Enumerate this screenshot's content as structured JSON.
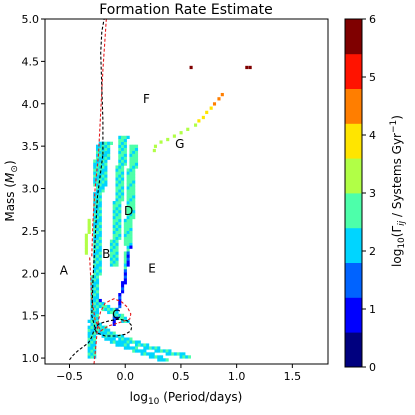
{
  "chart_data": {
    "type": "heatmap",
    "title": "Formation Rate Estimate",
    "xlabel": "log$_{10}$ (Period/days)",
    "ylabel": "Mass ($M_{\\odot}$)",
    "xlim": [
      -0.72,
      1.82
    ],
    "ylim": [
      0.93,
      5.0
    ],
    "xticks": [
      -0.5,
      0.0,
      0.5,
      1.0,
      1.5
    ],
    "xtick_labels": [
      "−0.5",
      "0.0",
      "0.5",
      "1.0",
      "1.5"
    ],
    "yticks": [
      1.0,
      1.5,
      2.0,
      2.5,
      3.0,
      3.5,
      4.0,
      4.5,
      5.0
    ],
    "ytick_labels": [
      "1.0",
      "1.5",
      "2.0",
      "2.5",
      "3.0",
      "3.5",
      "4.0",
      "4.5",
      "5.0"
    ],
    "colorbar": {
      "label": "log$_{10}$(Γ$_{ij}$ / Systems Gyr$^{-1}$)",
      "range": [
        0,
        6
      ],
      "ticks": [
        0,
        1,
        2,
        3,
        4,
        5,
        6
      ],
      "tick_labels": [
        "0",
        "1",
        "2",
        "3",
        "4",
        "5",
        "6"
      ],
      "colors": [
        "#00007f",
        "#0000ff",
        "#0063ff",
        "#00d5ff",
        "#4dffaa",
        "#b1ff46",
        "#ffe500",
        "#ff7e00",
        "#ff1300",
        "#7f0000"
      ]
    },
    "region_labels": [
      {
        "text": "A",
        "x": -0.55,
        "y": 2.03
      },
      {
        "text": "B",
        "x": -0.17,
        "y": 2.22
      },
      {
        "text": "C",
        "x": -0.08,
        "y": 1.51
      },
      {
        "text": "D",
        "x": 0.03,
        "y": 2.73
      },
      {
        "text": "E",
        "x": 0.24,
        "y": 2.05
      },
      {
        "text": "F",
        "x": 0.19,
        "y": 4.05
      },
      {
        "text": "G",
        "x": 0.49,
        "y": 3.52
      }
    ],
    "cell_size": {
      "dx": 0.025,
      "dy": 0.035
    },
    "cells": [
      [
        0.59,
        4.43,
        6.0
      ],
      [
        1.09,
        4.43,
        5.9
      ],
      [
        1.12,
        4.43,
        5.9
      ],
      [
        0.87,
        4.11,
        4.8
      ],
      [
        0.84,
        4.06,
        4.5
      ],
      [
        0.8,
        4.0,
        4.2
      ],
      [
        0.77,
        3.95,
        4.0
      ],
      [
        0.73,
        3.9,
        3.8
      ],
      [
        0.7,
        3.84,
        3.7
      ],
      [
        0.66,
        3.8,
        3.6
      ],
      [
        0.63,
        3.75,
        3.5
      ],
      [
        0.56,
        3.7,
        3.4
      ],
      [
        0.5,
        3.66,
        3.3
      ],
      [
        0.44,
        3.62,
        3.2
      ],
      [
        0.38,
        3.58,
        3.1
      ],
      [
        0.32,
        3.55,
        3.0
      ],
      [
        0.27,
        3.5,
        3.0
      ],
      [
        0.26,
        3.45,
        3.0
      ]
    ],
    "bands": [
      {
        "name": "main",
        "pts": [
          [
            -0.29,
            1.0,
            0.06
          ],
          [
            -0.29,
            1.35,
            0.06
          ],
          [
            -0.27,
            1.7,
            0.07
          ],
          [
            -0.26,
            2.1,
            0.08
          ],
          [
            -0.25,
            2.5,
            0.08
          ],
          [
            -0.24,
            2.9,
            0.08
          ],
          [
            -0.22,
            3.3,
            0.1
          ],
          [
            -0.18,
            3.55,
            0.11
          ]
        ],
        "v": 2.3
      },
      {
        "name": "inner",
        "pts": [
          [
            -0.1,
            2.1,
            0.04
          ],
          [
            -0.08,
            2.6,
            0.06
          ],
          [
            -0.05,
            3.05,
            0.07
          ],
          [
            -0.03,
            3.4,
            0.06
          ],
          [
            -0.01,
            3.62,
            0.05
          ]
        ],
        "v": 2.5
      },
      {
        "name": "right",
        "pts": [
          [
            0.0,
            2.05,
            0.03
          ],
          [
            0.02,
            2.4,
            0.04
          ],
          [
            0.05,
            2.85,
            0.04
          ],
          [
            0.06,
            3.15,
            0.04
          ],
          [
            0.07,
            3.5,
            0.04
          ]
        ],
        "v": 2.6
      },
      {
        "name": "lower1",
        "pts": [
          [
            -0.3,
            1.45,
            0.06
          ],
          [
            -0.15,
            1.3,
            0.05
          ],
          [
            0.0,
            1.22,
            0.05
          ],
          [
            0.15,
            1.15,
            0.05
          ],
          [
            0.35,
            1.08,
            0.05
          ],
          [
            0.55,
            1.02,
            0.04
          ]
        ],
        "v": 2.4
      },
      {
        "name": "lower2",
        "pts": [
          [
            -0.28,
            1.35,
            0.05
          ],
          [
            -0.1,
            1.2,
            0.04
          ],
          [
            0.05,
            1.12,
            0.04
          ],
          [
            0.2,
            1.05,
            0.04
          ],
          [
            0.35,
            0.98,
            0.04
          ]
        ],
        "v": 2.2
      },
      {
        "name": "lower3",
        "pts": [
          [
            -0.25,
            1.65,
            0.04
          ],
          [
            -0.12,
            1.55,
            0.04
          ],
          [
            0.0,
            1.45,
            0.04
          ]
        ],
        "v": 2.5
      },
      {
        "name": "blueline",
        "pts": [
          [
            -0.1,
            1.4,
            0.015
          ],
          [
            -0.02,
            1.85,
            0.015
          ],
          [
            0.04,
            2.3,
            0.015
          ]
        ],
        "v": 1.1
      },
      {
        "name": "blueline2",
        "pts": [
          [
            -0.27,
            1.85,
            0.015
          ],
          [
            -0.22,
            1.6,
            0.015
          ]
        ],
        "v": 1.3
      },
      {
        "name": "leftblip",
        "pts": [
          [
            -0.36,
            2.25,
            0.03
          ],
          [
            -0.34,
            2.45,
            0.03
          ],
          [
            -0.32,
            2.62,
            0.03
          ]
        ],
        "v": 3.3
      }
    ],
    "boundary_lines": [
      {
        "color": "#e41a1c",
        "style": "dashed",
        "x": [
          -0.28,
          -0.27,
          -0.26,
          -0.25,
          -0.24,
          -0.22,
          -0.18,
          -0.1,
          -0.03,
          0.02,
          0.05,
          0.04,
          -0.05,
          -0.15,
          -0.22,
          -0.27,
          -0.3,
          -0.32
        ],
        "y": [
          0.93,
          1.05,
          1.2,
          1.35,
          1.45,
          1.55,
          1.65,
          1.7,
          1.66,
          1.6,
          1.52,
          1.46,
          1.42,
          1.38,
          1.32,
          1.45,
          1.7,
          2.2
        ]
      },
      {
        "color": "#e41a1c",
        "style": "dashed",
        "x": [
          -0.3,
          -0.29,
          -0.27,
          -0.24,
          -0.22,
          -0.2,
          -0.18,
          -0.17
        ],
        "y": [
          2.2,
          2.6,
          3.0,
          3.4,
          3.9,
          4.4,
          4.8,
          5.0
        ]
      },
      {
        "color": "#000000",
        "style": "dashed",
        "x": [
          -0.5,
          -0.47,
          -0.43,
          -0.38,
          -0.33,
          -0.3,
          -0.28,
          -0.24,
          -0.2,
          -0.14,
          -0.06,
          0.02,
          0.06,
          0.05,
          0.0,
          -0.08,
          -0.18,
          -0.26,
          -0.3,
          -0.29,
          -0.27,
          -0.25,
          -0.22,
          -0.2
        ],
        "y": [
          0.98,
          1.03,
          1.08,
          1.13,
          1.18,
          1.25,
          1.33,
          1.4,
          1.42,
          1.44,
          1.46,
          1.44,
          1.38,
          1.32,
          1.28,
          1.26,
          1.26,
          1.3,
          1.5,
          1.9,
          2.4,
          2.9,
          3.2,
          3.4
        ]
      },
      {
        "color": "#000000",
        "style": "dashed",
        "x": [
          -0.2,
          -0.2,
          -0.21,
          -0.22,
          -0.21,
          -0.19
        ],
        "y": [
          3.4,
          3.8,
          4.2,
          4.6,
          4.85,
          5.0
        ]
      }
    ]
  }
}
